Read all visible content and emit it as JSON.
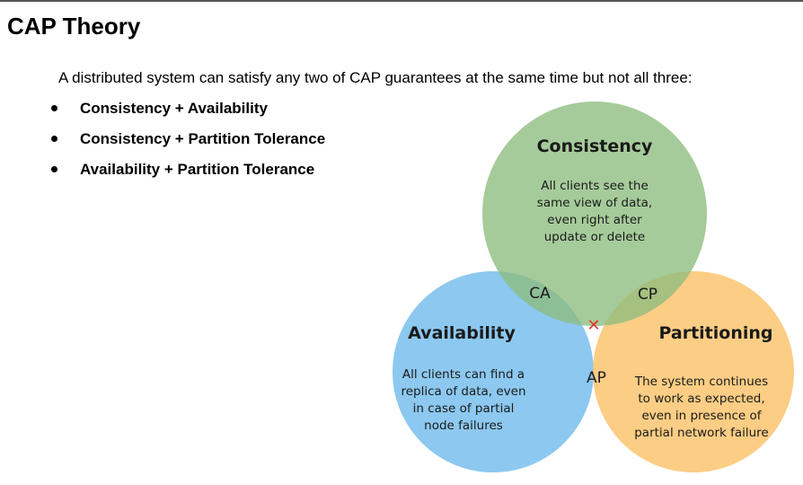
{
  "slide": {
    "title": "CAP Theory",
    "intro": "A distributed system can satisfy any two of CAP guarantees at the same time but not all three:",
    "bullets": [
      "Consistency + Availability",
      "Consistency + Partition Tolerance",
      "Availability + Partition Tolerance"
    ]
  },
  "diagram": {
    "circles": [
      {
        "title": "Consistency",
        "lines": [
          "All clients see the",
          "same view of data,",
          "even right after",
          "update or delete"
        ],
        "color": "#8dbd7e"
      },
      {
        "title": "Availability",
        "lines": [
          "All clients can find a",
          "replica of data, even",
          "in case of partial",
          "node failures"
        ],
        "color": "#6bb9ea"
      },
      {
        "title": "Partitioning",
        "lines": [
          "The system continues",
          "to work as expected,",
          "even in presence of",
          "partial network failure"
        ],
        "color": "#fbbf62"
      }
    ],
    "intersections": {
      "ca": "CA",
      "cp": "CP",
      "ap": "AP"
    },
    "center_marker": "✕",
    "center_marker_color": "#e0382b"
  }
}
